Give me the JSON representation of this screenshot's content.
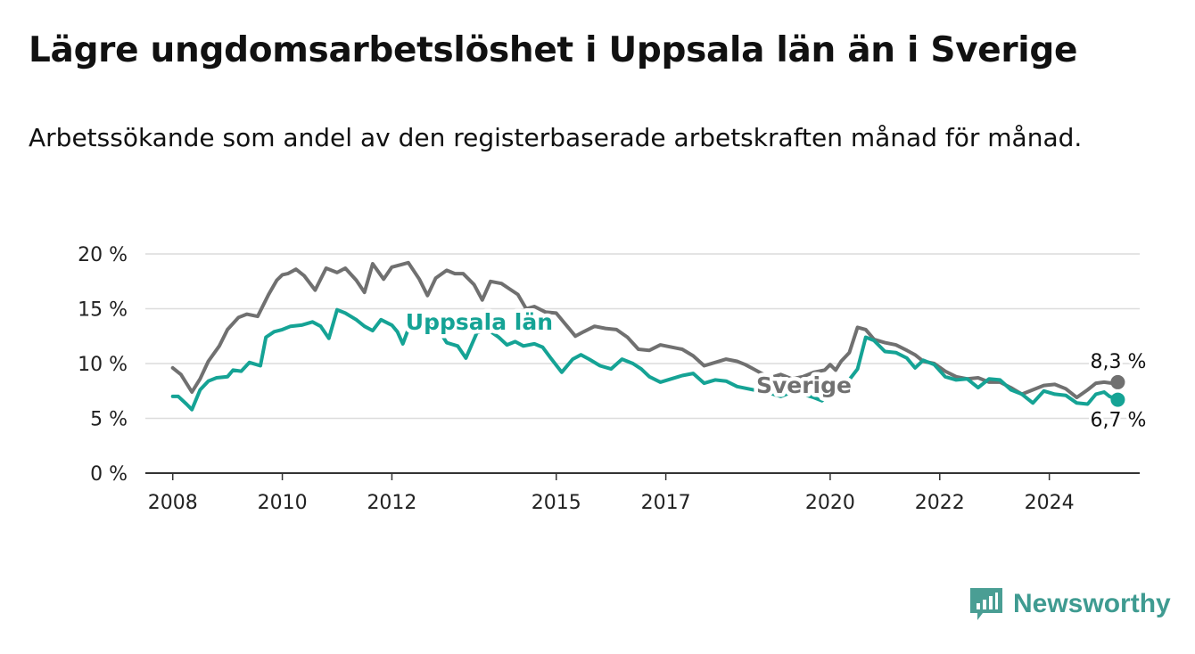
{
  "header": {
    "title": "Lägre ungdomsarbetslöshet i Uppsala län än i Sverige",
    "subtitle": "Arbetssökande som andel av den registerbaserade arbetskraften månad för månad."
  },
  "brand": {
    "name": "Newsworthy",
    "icon": "newsworthy-logo-icon",
    "color": "#4a9e94"
  },
  "chart_data": {
    "type": "line",
    "title": "Lägre ungdomsarbetslöshet i Uppsala län än i Sverige",
    "subtitle": "Arbetssökande som andel av den registerbaserade arbetskraften månad för månad.",
    "xlabel": "",
    "ylabel": "",
    "ylim": [
      0,
      20
    ],
    "xlim": [
      2007.5,
      2025.65
    ],
    "grid": true,
    "legend": "inline labels",
    "y_ticks": [
      0,
      5,
      10,
      15,
      20
    ],
    "y_tick_labels": [
      "0 %",
      "5 %",
      "10 %",
      "15 %",
      "20 %"
    ],
    "x_ticks": [
      2008,
      2010,
      2012,
      2015,
      2017,
      2020,
      2022,
      2024
    ],
    "x_tick_labels": [
      "2008",
      "2010",
      "2012",
      "2015",
      "2017",
      "2020",
      "2022",
      "2024"
    ],
    "series": [
      {
        "name": "Sverige",
        "color": "#707070",
        "end_label": "8,3 %",
        "x": [
          2008.0,
          2008.15,
          2008.35,
          2008.5,
          2008.65,
          2008.85,
          2009.0,
          2009.2,
          2009.35,
          2009.55,
          2009.75,
          2009.9,
          2010.0,
          2010.1,
          2010.25,
          2010.4,
          2010.6,
          2010.8,
          2011.0,
          2011.15,
          2011.35,
          2011.5,
          2011.65,
          2011.85,
          2012.0,
          2012.15,
          2012.3,
          2012.5,
          2012.65,
          2012.8,
          2013.0,
          2013.15,
          2013.3,
          2013.5,
          2013.65,
          2013.8,
          2014.0,
          2014.15,
          2014.3,
          2014.45,
          2014.6,
          2014.8,
          2015.0,
          2015.2,
          2015.35,
          2015.5,
          2015.7,
          2015.9,
          2016.1,
          2016.3,
          2016.5,
          2016.7,
          2016.9,
          2017.1,
          2017.3,
          2017.5,
          2017.7,
          2017.9,
          2018.1,
          2018.3,
          2018.45,
          2018.6,
          2018.75,
          2018.9,
          2019.1,
          2019.3,
          2019.5,
          2019.7,
          2019.9,
          2020.0,
          2020.1,
          2020.2,
          2020.35,
          2020.5,
          2020.65,
          2020.8,
          2021.0,
          2021.2,
          2021.4,
          2021.55,
          2021.7,
          2021.9,
          2022.1,
          2022.3,
          2022.5,
          2022.7,
          2022.9,
          2023.1,
          2023.3,
          2023.5,
          2023.7,
          2023.9,
          2024.1,
          2024.3,
          2024.5,
          2024.7,
          2024.85,
          2025.0,
          2025.15,
          2025.25
        ],
        "y": [
          9.6,
          9.0,
          7.4,
          8.6,
          10.2,
          11.6,
          13.1,
          14.2,
          14.5,
          14.3,
          16.3,
          17.6,
          18.1,
          18.2,
          18.6,
          18.0,
          16.7,
          18.7,
          18.3,
          18.7,
          17.6,
          16.5,
          19.1,
          17.7,
          18.8,
          19.0,
          19.2,
          17.7,
          16.2,
          17.8,
          18.5,
          18.2,
          18.2,
          17.2,
          15.8,
          17.5,
          17.3,
          16.8,
          16.3,
          15.0,
          15.2,
          14.7,
          14.6,
          13.4,
          12.5,
          12.9,
          13.4,
          13.2,
          13.1,
          12.4,
          11.3,
          11.2,
          11.7,
          11.5,
          11.3,
          10.7,
          9.8,
          10.1,
          10.4,
          10.2,
          9.9,
          9.5,
          9.1,
          8.7,
          9.0,
          8.6,
          8.8,
          9.2,
          9.4,
          9.9,
          9.4,
          10.2,
          11.0,
          13.3,
          13.1,
          12.2,
          11.9,
          11.7,
          11.2,
          10.8,
          10.2,
          10.0,
          9.3,
          8.8,
          8.6,
          8.7,
          8.3,
          8.3,
          7.8,
          7.2,
          7.6,
          8.0,
          8.1,
          7.7,
          6.9,
          7.6,
          8.2,
          8.3,
          8.2,
          8.3
        ]
      },
      {
        "name": "Uppsala län",
        "color": "#15a395",
        "end_label": "6,7 %",
        "x": [
          2008.0,
          2008.1,
          2008.25,
          2008.35,
          2008.5,
          2008.65,
          2008.8,
          2009.0,
          2009.1,
          2009.25,
          2009.4,
          2009.6,
          2009.7,
          2009.85,
          2010.0,
          2010.15,
          2010.35,
          2010.55,
          2010.7,
          2010.85,
          2011.0,
          2011.15,
          2011.35,
          2011.5,
          2011.65,
          2011.8,
          2012.0,
          2012.1,
          2012.2,
          2012.35,
          2012.5,
          2012.7,
          2012.85,
          2013.0,
          2013.2,
          2013.35,
          2013.55,
          2013.75,
          2013.95,
          2014.1,
          2014.25,
          2014.4,
          2014.6,
          2014.75,
          2014.9,
          2015.1,
          2015.3,
          2015.45,
          2015.6,
          2015.8,
          2016.0,
          2016.2,
          2016.4,
          2016.55,
          2016.7,
          2016.9,
          2017.1,
          2017.3,
          2017.5,
          2017.7,
          2017.9,
          2018.1,
          2018.3,
          2018.5,
          2018.7,
          2018.9,
          2019.1,
          2019.3,
          2019.5,
          2019.7,
          2019.85,
          2020.0,
          2020.15,
          2020.3,
          2020.5,
          2020.65,
          2020.8,
          2021.0,
          2021.2,
          2021.4,
          2021.55,
          2021.7,
          2021.9,
          2022.1,
          2022.3,
          2022.5,
          2022.7,
          2022.9,
          2023.1,
          2023.3,
          2023.5,
          2023.7,
          2023.9,
          2024.1,
          2024.3,
          2024.5,
          2024.7,
          2024.85,
          2025.0,
          2025.1,
          2025.25
        ],
        "y": [
          7.0,
          7.0,
          6.3,
          5.8,
          7.6,
          8.4,
          8.7,
          8.8,
          9.4,
          9.3,
          10.1,
          9.8,
          12.4,
          12.9,
          13.1,
          13.4,
          13.5,
          13.8,
          13.4,
          12.3,
          14.9,
          14.6,
          14.0,
          13.4,
          13.0,
          14.0,
          13.5,
          12.9,
          11.8,
          13.8,
          13.9,
          13.6,
          13.1,
          11.9,
          11.6,
          10.5,
          12.8,
          13.1,
          12.4,
          11.7,
          12.0,
          11.6,
          11.8,
          11.5,
          10.5,
          9.2,
          10.4,
          10.8,
          10.4,
          9.8,
          9.5,
          10.4,
          10.0,
          9.5,
          8.8,
          8.3,
          8.6,
          8.9,
          9.1,
          8.2,
          8.5,
          8.4,
          7.9,
          7.7,
          7.5,
          7.3,
          7.0,
          7.4,
          7.2,
          6.9,
          6.6,
          7.3,
          7.7,
          8.2,
          9.5,
          12.4,
          12.1,
          11.1,
          11.0,
          10.5,
          9.6,
          10.3,
          9.9,
          8.8,
          8.5,
          8.6,
          7.8,
          8.6,
          8.5,
          7.6,
          7.2,
          6.4,
          7.5,
          7.2,
          7.1,
          6.4,
          6.3,
          7.2,
          7.4,
          7.0,
          6.7
        ]
      }
    ]
  }
}
